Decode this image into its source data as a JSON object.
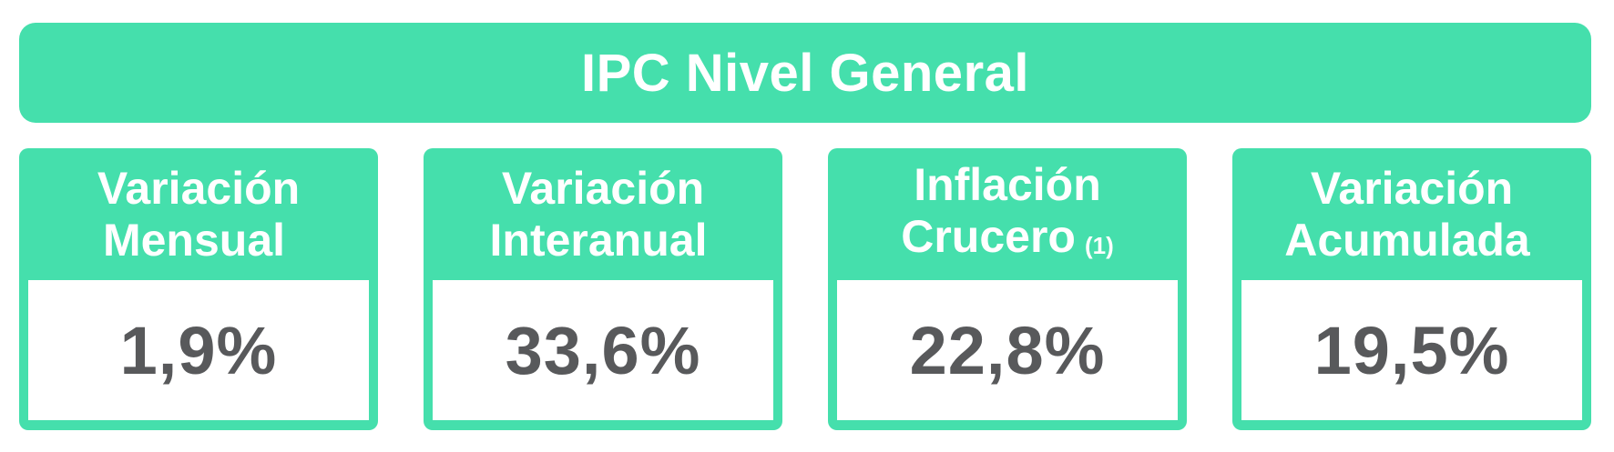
{
  "chart_data": {
    "type": "table",
    "title": "IPC Nivel General",
    "categories": [
      "Variación Mensual",
      "Variación Interanual",
      "Inflación Crucero (1)",
      "Variación Acumulada"
    ],
    "values": [
      1.9,
      33.6,
      22.8,
      19.5
    ],
    "unit": "%",
    "value_labels": [
      "1,9%",
      "33,6%",
      "22,8%",
      "19,5%"
    ],
    "legend": "none",
    "layout": "header banner above four metric cards"
  },
  "colors": {
    "accent_green": "#45DFAC",
    "value_text": "#58595B",
    "title_text": "#FFFFFF",
    "background": "#FFFFFF"
  },
  "header": {
    "title": "IPC Nivel General"
  },
  "cards": [
    {
      "title_line1": "Variación",
      "title_line2": "Mensual",
      "note": "",
      "value": "1,9%"
    },
    {
      "title_line1": "Variación",
      "title_line2": "Interanual",
      "note": "",
      "value": "33,6%"
    },
    {
      "title_line1": "Inflación",
      "title_line2": "Crucero",
      "note": "(1)",
      "value": "22,8%"
    },
    {
      "title_line1": "Variación",
      "title_line2": "Acumulada",
      "note": "",
      "value": "19,5%"
    }
  ]
}
